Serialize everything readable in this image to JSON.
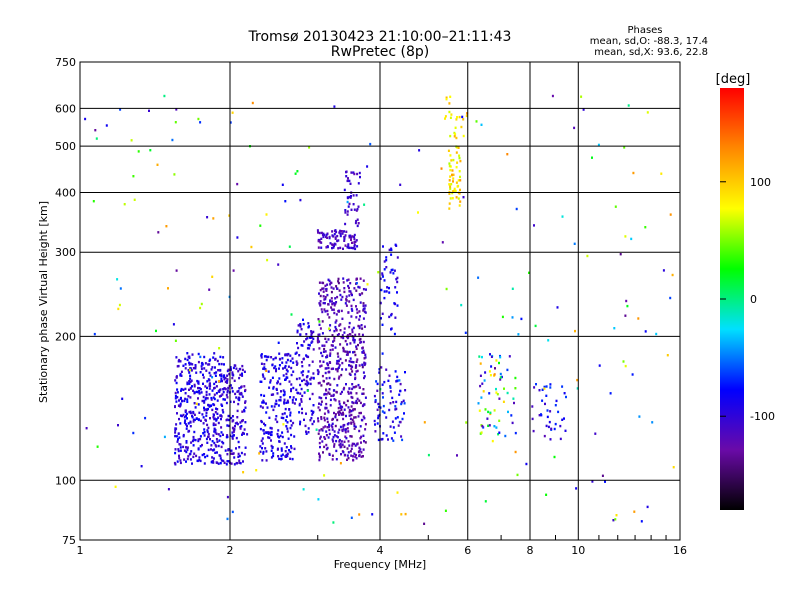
{
  "chart_data": {
    "type": "scatter",
    "title": "Tromsø 20130423 21:10:00–21:11:43",
    "subtitle": "RwPretec (8p)",
    "xlabel": "Frequency [MHz]",
    "ylabel": "Stationary phase Virtual Height [km]",
    "x_scale": "log",
    "y_scale": "log",
    "xlim": [
      1,
      16
    ],
    "ylim": [
      75,
      750
    ],
    "x_ticks": [
      1,
      2,
      4,
      6,
      8,
      10,
      16
    ],
    "x_tick_labels": [
      "1",
      "2",
      "4",
      "6",
      "8",
      "10",
      "16"
    ],
    "y_ticks": [
      75,
      100,
      200,
      300,
      400,
      500,
      600,
      750
    ],
    "y_tick_labels": [
      "75",
      "100",
      "200",
      "300",
      "400",
      "500",
      "600",
      "750"
    ],
    "grid": true,
    "stats_title": "Phases",
    "stats_o": "mean, sd,O: -88.3, 17.4",
    "stats_x": "mean, sd,X:  93.6, 22.8",
    "colorbar": {
      "label": "[deg]",
      "range": [
        -180,
        180
      ],
      "ticks": [
        100,
        0,
        -100
      ],
      "tick_labels": [
        "100",
        "0",
        "-100"
      ],
      "colors": [
        "#000000",
        "#6a0aa8",
        "#0000ff",
        "#00e0ff",
        "#00ff00",
        "#ffff00",
        "#ff8800",
        "#ff0000"
      ]
    },
    "clusters": [
      {
        "x": [
          1.55,
          1.95
        ],
        "y": [
          108,
          185
        ],
        "phase": [
          -115,
          -75
        ],
        "n": 420
      },
      {
        "x": [
          1.95,
          2.15
        ],
        "y": [
          108,
          175
        ],
        "phase": [
          -120,
          -80
        ],
        "n": 150
      },
      {
        "x": [
          2.3,
          2.7
        ],
        "y": [
          110,
          185
        ],
        "phase": [
          -110,
          -75
        ],
        "n": 220
      },
      {
        "x": [
          2.7,
          2.95
        ],
        "y": [
          125,
          215
        ],
        "phase": [
          -115,
          -80
        ],
        "n": 110
      },
      {
        "x": [
          3.0,
          3.75
        ],
        "y": [
          110,
          265
        ],
        "phase": [
          -140,
          -95
        ],
        "n": 600
      },
      {
        "x": [
          3.0,
          3.6
        ],
        "y": [
          305,
          335
        ],
        "phase": [
          -130,
          -95
        ],
        "n": 90
      },
      {
        "x": [
          3.4,
          3.65
        ],
        "y": [
          340,
          445
        ],
        "phase": [
          -125,
          -95
        ],
        "n": 40
      },
      {
        "x": [
          3.9,
          4.5
        ],
        "y": [
          120,
          175
        ],
        "phase": [
          -120,
          -60
        ],
        "n": 80
      },
      {
        "x": [
          4.0,
          4.35
        ],
        "y": [
          200,
          320
        ],
        "phase": [
          -110,
          -70
        ],
        "n": 50
      },
      {
        "x": [
          5.5,
          5.8
        ],
        "y": [
          370,
          500
        ],
        "phase": [
          60,
          120
        ],
        "n": 55
      },
      {
        "x": [
          5.4,
          5.9
        ],
        "y": [
          520,
          640
        ],
        "phase": [
          60,
          110
        ],
        "n": 20
      },
      {
        "x": [
          6.3,
          7.5
        ],
        "y": [
          120,
          185
        ],
        "phase": [
          -120,
          110
        ],
        "n": 60
      },
      {
        "x": [
          8.0,
          9.5
        ],
        "y": [
          120,
          160
        ],
        "phase": [
          -120,
          -60
        ],
        "n": 40
      },
      {
        "x": [
          1.0,
          16.0
        ],
        "y": [
          80,
          650
        ],
        "phase": [
          -140,
          130
        ],
        "n": 220
      }
    ]
  }
}
